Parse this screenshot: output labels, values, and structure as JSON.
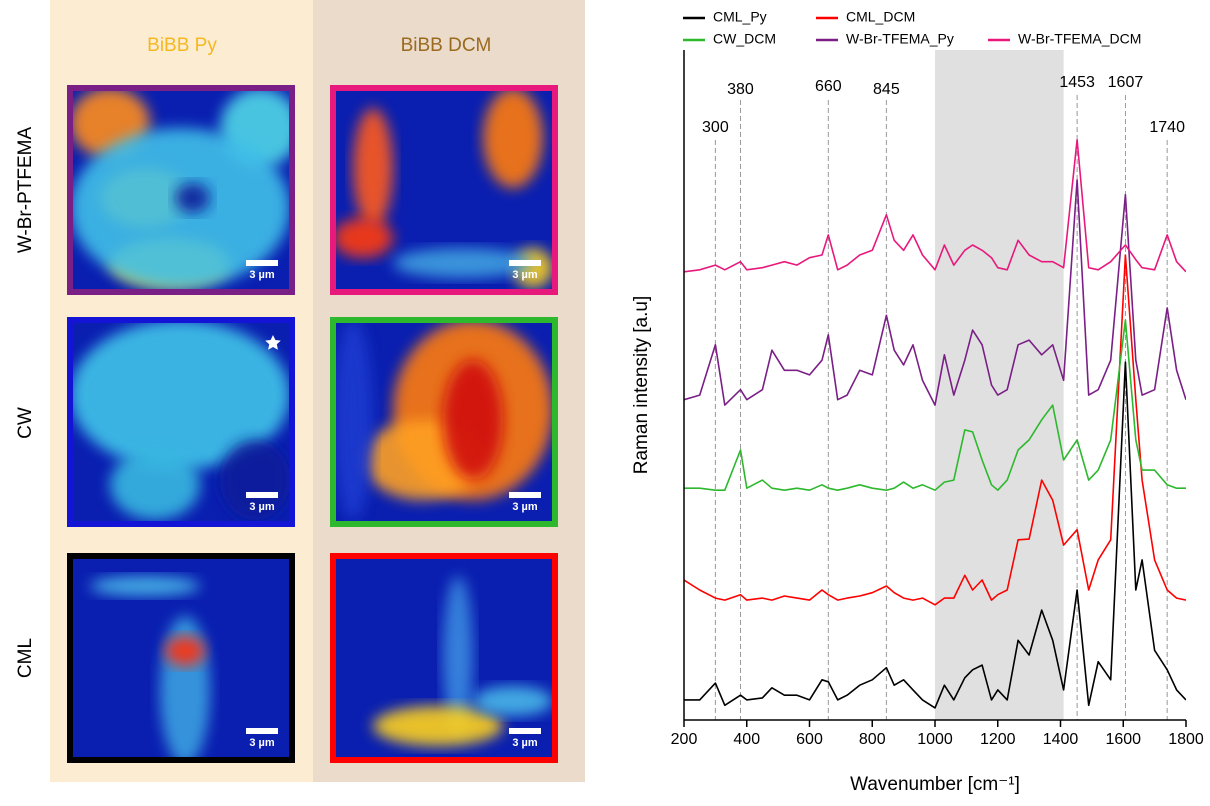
{
  "maps": {
    "columns": [
      "BiBB Py",
      "BiBB DCM"
    ],
    "rows": [
      "W-Br-PTFEMA",
      "CW",
      "CML"
    ],
    "scale_bar": "3 µm"
  },
  "chart_data": {
    "type": "line",
    "xlabel": "Wavenumber [cm⁻¹]",
    "ylabel": "Raman intensity [a.u]",
    "x": [
      200,
      250,
      300,
      330,
      380,
      400,
      450,
      480,
      520,
      560,
      600,
      640,
      660,
      690,
      720,
      760,
      800,
      845,
      870,
      900,
      930,
      960,
      1000,
      1030,
      1060,
      1095,
      1120,
      1150,
      1180,
      1200,
      1230,
      1265,
      1300,
      1340,
      1375,
      1410,
      1453,
      1490,
      1520,
      1560,
      1607,
      1640,
      1660,
      1700,
      1740,
      1770,
      1800
    ],
    "xlim": [
      200,
      1800
    ],
    "xticks": [
      200,
      400,
      600,
      800,
      1000,
      1200,
      1400,
      1600,
      1800
    ],
    "ylim": [
      0,
      10
    ],
    "shaded_region": [
      1000,
      1410
    ],
    "peaks": [
      300,
      380,
      660,
      845,
      1453,
      1607,
      1740
    ],
    "series": [
      {
        "name": "CML_Py",
        "color": "#000000",
        "values": [
          0.3,
          0.3,
          0.55,
          0.22,
          0.37,
          0.3,
          0.33,
          0.48,
          0.37,
          0.37,
          0.3,
          0.6,
          0.57,
          0.3,
          0.37,
          0.52,
          0.6,
          0.78,
          0.52,
          0.6,
          0.45,
          0.3,
          0.18,
          0.52,
          0.3,
          0.63,
          0.75,
          0.82,
          0.3,
          0.45,
          0.3,
          1.19,
          0.97,
          1.64,
          1.19,
          0.45,
          1.94,
          0.22,
          0.87,
          0.6,
          5.34,
          1.94,
          2.39,
          1.04,
          0.75,
          0.45,
          0.3
        ]
      },
      {
        "name": "CML_DCM",
        "color": "#ff0000",
        "values": [
          2.09,
          1.94,
          1.82,
          1.79,
          1.87,
          1.79,
          1.82,
          1.79,
          1.85,
          1.82,
          1.79,
          1.94,
          1.87,
          1.79,
          1.82,
          1.85,
          1.9,
          2.0,
          1.9,
          1.82,
          1.79,
          1.82,
          1.72,
          1.82,
          1.82,
          2.16,
          1.94,
          2.09,
          1.79,
          1.87,
          1.94,
          2.69,
          2.7,
          3.58,
          3.28,
          2.61,
          2.84,
          1.94,
          2.39,
          2.69,
          6.94,
          4.78,
          3.58,
          2.39,
          1.94,
          1.82,
          1.79
        ]
      },
      {
        "name": "CW_DCM",
        "color": "#2eb82e",
        "values": [
          3.46,
          3.46,
          3.43,
          3.43,
          4.03,
          3.46,
          3.58,
          3.46,
          3.43,
          3.46,
          3.43,
          3.51,
          3.46,
          3.43,
          3.46,
          3.51,
          3.46,
          3.43,
          3.46,
          3.55,
          3.46,
          3.51,
          3.43,
          3.55,
          3.58,
          4.33,
          4.3,
          3.88,
          3.51,
          3.43,
          3.58,
          4.03,
          4.18,
          4.48,
          4.7,
          3.88,
          4.18,
          3.58,
          3.73,
          4.18,
          5.97,
          4.18,
          3.73,
          3.73,
          3.51,
          3.46,
          3.46
        ]
      },
      {
        "name": "W-Br-TFEMA_Py",
        "color": "#7a1f86",
        "values": [
          4.78,
          4.85,
          5.6,
          4.7,
          4.93,
          4.78,
          4.93,
          5.52,
          5.22,
          5.22,
          5.15,
          5.37,
          5.75,
          4.78,
          4.85,
          5.22,
          5.15,
          6.04,
          5.52,
          5.3,
          5.6,
          5.07,
          4.7,
          5.45,
          4.85,
          5.37,
          5.82,
          5.6,
          5.0,
          4.85,
          4.93,
          5.6,
          5.67,
          5.45,
          5.6,
          5.07,
          8.06,
          4.85,
          4.93,
          5.37,
          7.84,
          5.37,
          4.85,
          4.93,
          6.15,
          5.22,
          4.78
        ]
      },
      {
        "name": "W-Br-TFEMA_DCM",
        "color": "#e8197d",
        "values": [
          6.69,
          6.72,
          6.79,
          6.72,
          6.84,
          6.72,
          6.75,
          6.79,
          6.84,
          6.79,
          6.9,
          6.94,
          7.24,
          6.72,
          6.79,
          6.94,
          7.01,
          7.54,
          7.16,
          7.01,
          7.24,
          6.94,
          6.72,
          7.09,
          6.79,
          7.01,
          7.09,
          7.01,
          6.9,
          6.75,
          6.72,
          7.16,
          6.94,
          6.84,
          6.84,
          6.75,
          8.66,
          6.75,
          6.72,
          6.84,
          7.09,
          6.87,
          6.75,
          6.72,
          7.24,
          6.84,
          6.69
        ]
      }
    ]
  }
}
